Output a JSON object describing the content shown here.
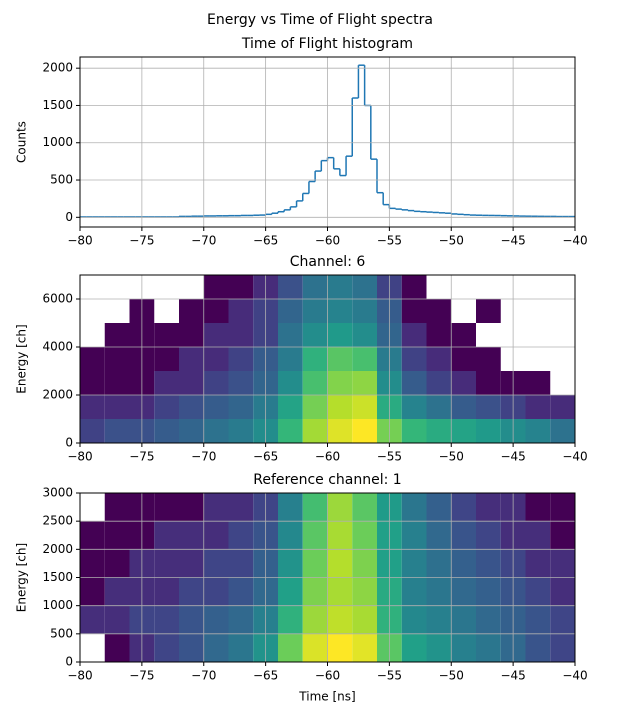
{
  "title": "Energy vs Time of Flight spectra",
  "chart_data": [
    {
      "type": "histogram",
      "title": "Time of Flight histogram",
      "ylabel": "Counts",
      "color": "#1f77b4",
      "bins": [
        -80,
        -79.5,
        -79,
        -78.5,
        -78,
        -77.5,
        -77,
        -76.5,
        -76,
        -75.5,
        -75,
        -74.5,
        -74,
        -73.5,
        -73,
        -72.5,
        -72,
        -71.5,
        -71,
        -70.5,
        -70,
        -69.5,
        -69,
        -68.5,
        -68,
        -67.5,
        -67,
        -66.5,
        -66,
        -65.5,
        -65,
        -64.5,
        -64,
        -63.5,
        -63,
        -62.5,
        -62,
        -61.5,
        -61,
        -60.5,
        -60,
        -59.5,
        -59,
        -58.5,
        -58,
        -57.5,
        -57,
        -56.5,
        -56,
        -55.5,
        -55,
        -54.5,
        -54,
        -53.5,
        -53,
        -52.5,
        -52,
        -51.5,
        -51,
        -50.5,
        -50,
        -49.5,
        -49,
        -48.5,
        -48,
        -47.5,
        -47,
        -46.5,
        -46,
        -45.5,
        -45,
        -44.5,
        -44,
        -43.5,
        -43,
        -42.5,
        -42,
        -41.5,
        -41,
        -40.5,
        -40
      ],
      "values": [
        5,
        5,
        5,
        5,
        5,
        5,
        5,
        5,
        5,
        5,
        5,
        5,
        5,
        5,
        5,
        5,
        12,
        12,
        15,
        15,
        18,
        18,
        20,
        20,
        22,
        22,
        25,
        25,
        28,
        30,
        40,
        55,
        75,
        100,
        140,
        220,
        320,
        480,
        620,
        760,
        800,
        650,
        560,
        820,
        1600,
        2040,
        1500,
        780,
        330,
        170,
        120,
        110,
        100,
        90,
        80,
        75,
        70,
        65,
        60,
        55,
        45,
        40,
        35,
        30,
        28,
        26,
        25,
        24,
        22,
        20,
        18,
        16,
        15,
        14,
        13,
        12,
        12,
        10,
        10,
        10
      ],
      "xlim": [
        -80,
        -40
      ],
      "ylim": [
        -130,
        2150
      ],
      "xticks": [
        {
          "value": -80,
          "label": "−80"
        },
        {
          "value": -75,
          "label": "−75"
        },
        {
          "value": -70,
          "label": "−70"
        },
        {
          "value": -65,
          "label": "−65"
        },
        {
          "value": -60,
          "label": "−60"
        },
        {
          "value": -55,
          "label": "−55"
        },
        {
          "value": -50,
          "label": "−50"
        },
        {
          "value": -45,
          "label": "−45"
        },
        {
          "value": -40,
          "label": "−40"
        }
      ],
      "yticks": [
        0,
        500,
        1000,
        1500,
        2000
      ],
      "grid": true
    },
    {
      "type": "histogram2d",
      "title": "Channel: 6",
      "ylabel": "Energy [ch]",
      "colormap": "viridis",
      "color_norm": "log",
      "xbins": [
        -80,
        -78,
        -76,
        -74,
        -72,
        -70,
        -68,
        -66,
        -64,
        -62,
        -60,
        -58,
        -56,
        -54,
        -52,
        -50,
        -48,
        -46,
        -44,
        -42,
        -40
      ],
      "ybins": [
        0,
        1000,
        2000,
        3000,
        4000,
        5000,
        6000,
        7000
      ],
      "values": [
        [
          3,
          4,
          4,
          5,
          6,
          8,
          10,
          15,
          40,
          120,
          200,
          260,
          80,
          40,
          30,
          25,
          20,
          15,
          12,
          8
        ],
        [
          2,
          2,
          2,
          3,
          4,
          5,
          6,
          10,
          25,
          80,
          140,
          170,
          30,
          12,
          8,
          5,
          4,
          3,
          2,
          2
        ],
        [
          1,
          1,
          1,
          2,
          2,
          3,
          4,
          6,
          15,
          50,
          90,
          100,
          15,
          5,
          3,
          2,
          1,
          1,
          1,
          0
        ],
        [
          1,
          1,
          1,
          1,
          2,
          2,
          3,
          5,
          10,
          35,
          60,
          50,
          10,
          3,
          2,
          1,
          1,
          0,
          0,
          0
        ],
        [
          0,
          1,
          1,
          1,
          1,
          2,
          2,
          3,
          8,
          15,
          20,
          15,
          6,
          2,
          1,
          1,
          0,
          0,
          0,
          0
        ],
        [
          0,
          0,
          1,
          0,
          1,
          1,
          2,
          3,
          6,
          10,
          12,
          10,
          5,
          1,
          1,
          0,
          1,
          0,
          0,
          0
        ],
        [
          0,
          0,
          0,
          0,
          0,
          1,
          1,
          2,
          4,
          8,
          10,
          8,
          3,
          1,
          0,
          0,
          0,
          0,
          0,
          0
        ]
      ],
      "xlim": [
        -80,
        -40
      ],
      "ylim": [
        0,
        7000
      ],
      "xticks": [
        {
          "value": -80,
          "label": "−80"
        },
        {
          "value": -75,
          "label": "−75"
        },
        {
          "value": -70,
          "label": "−70"
        },
        {
          "value": -65,
          "label": "−65"
        },
        {
          "value": -60,
          "label": "−60"
        },
        {
          "value": -55,
          "label": "−55"
        },
        {
          "value": -50,
          "label": "−50"
        },
        {
          "value": -45,
          "label": "−45"
        },
        {
          "value": -40,
          "label": "−40"
        }
      ],
      "yticks": [
        0,
        2000,
        4000,
        6000
      ],
      "grid": true
    },
    {
      "type": "histogram2d",
      "title": "Reference channel: 1",
      "ylabel": "Energy [ch]",
      "xlabel": "Time [ns]",
      "colormap": "viridis",
      "color_norm": "log",
      "xbins": [
        -80,
        -78,
        -76,
        -74,
        -72,
        -70,
        -68,
        -66,
        -64,
        -62,
        -60,
        -58,
        -56,
        -54,
        -52,
        -50,
        -48,
        -46,
        -44,
        -42,
        -40
      ],
      "ybins": [
        0,
        500,
        1000,
        1500,
        2000,
        2500,
        3000
      ],
      "values": [
        [
          0,
          1,
          2,
          3,
          4,
          6,
          8,
          15,
          60,
          150,
          200,
          160,
          50,
          20,
          15,
          10,
          8,
          6,
          4,
          3
        ],
        [
          2,
          2,
          3,
          3,
          4,
          5,
          6,
          10,
          30,
          90,
          120,
          100,
          30,
          12,
          10,
          8,
          6,
          5,
          4,
          3
        ],
        [
          1,
          2,
          2,
          2,
          3,
          3,
          4,
          6,
          20,
          70,
          100,
          80,
          25,
          10,
          8,
          6,
          5,
          4,
          3,
          2
        ],
        [
          1,
          1,
          2,
          2,
          2,
          3,
          3,
          5,
          15,
          60,
          110,
          70,
          20,
          10,
          7,
          5,
          4,
          3,
          2,
          2
        ],
        [
          1,
          1,
          1,
          2,
          2,
          2,
          3,
          4,
          12,
          50,
          100,
          60,
          20,
          10,
          6,
          4,
          3,
          2,
          2,
          1
        ],
        [
          0,
          1,
          1,
          1,
          1,
          2,
          2,
          3,
          10,
          40,
          90,
          50,
          18,
          8,
          5,
          3,
          2,
          2,
          1,
          1
        ]
      ],
      "xlim": [
        -80,
        -40
      ],
      "ylim": [
        0,
        3000
      ],
      "xticks": [
        {
          "value": -80,
          "label": "−80"
        },
        {
          "value": -75,
          "label": "−75"
        },
        {
          "value": -70,
          "label": "−70"
        },
        {
          "value": -65,
          "label": "−65"
        },
        {
          "value": -60,
          "label": "−60"
        },
        {
          "value": -55,
          "label": "−55"
        },
        {
          "value": -50,
          "label": "−50"
        },
        {
          "value": -45,
          "label": "−45"
        },
        {
          "value": -40,
          "label": "−40"
        }
      ],
      "yticks": [
        0,
        500,
        1000,
        1500,
        2000,
        2500,
        3000
      ],
      "grid": true
    }
  ]
}
